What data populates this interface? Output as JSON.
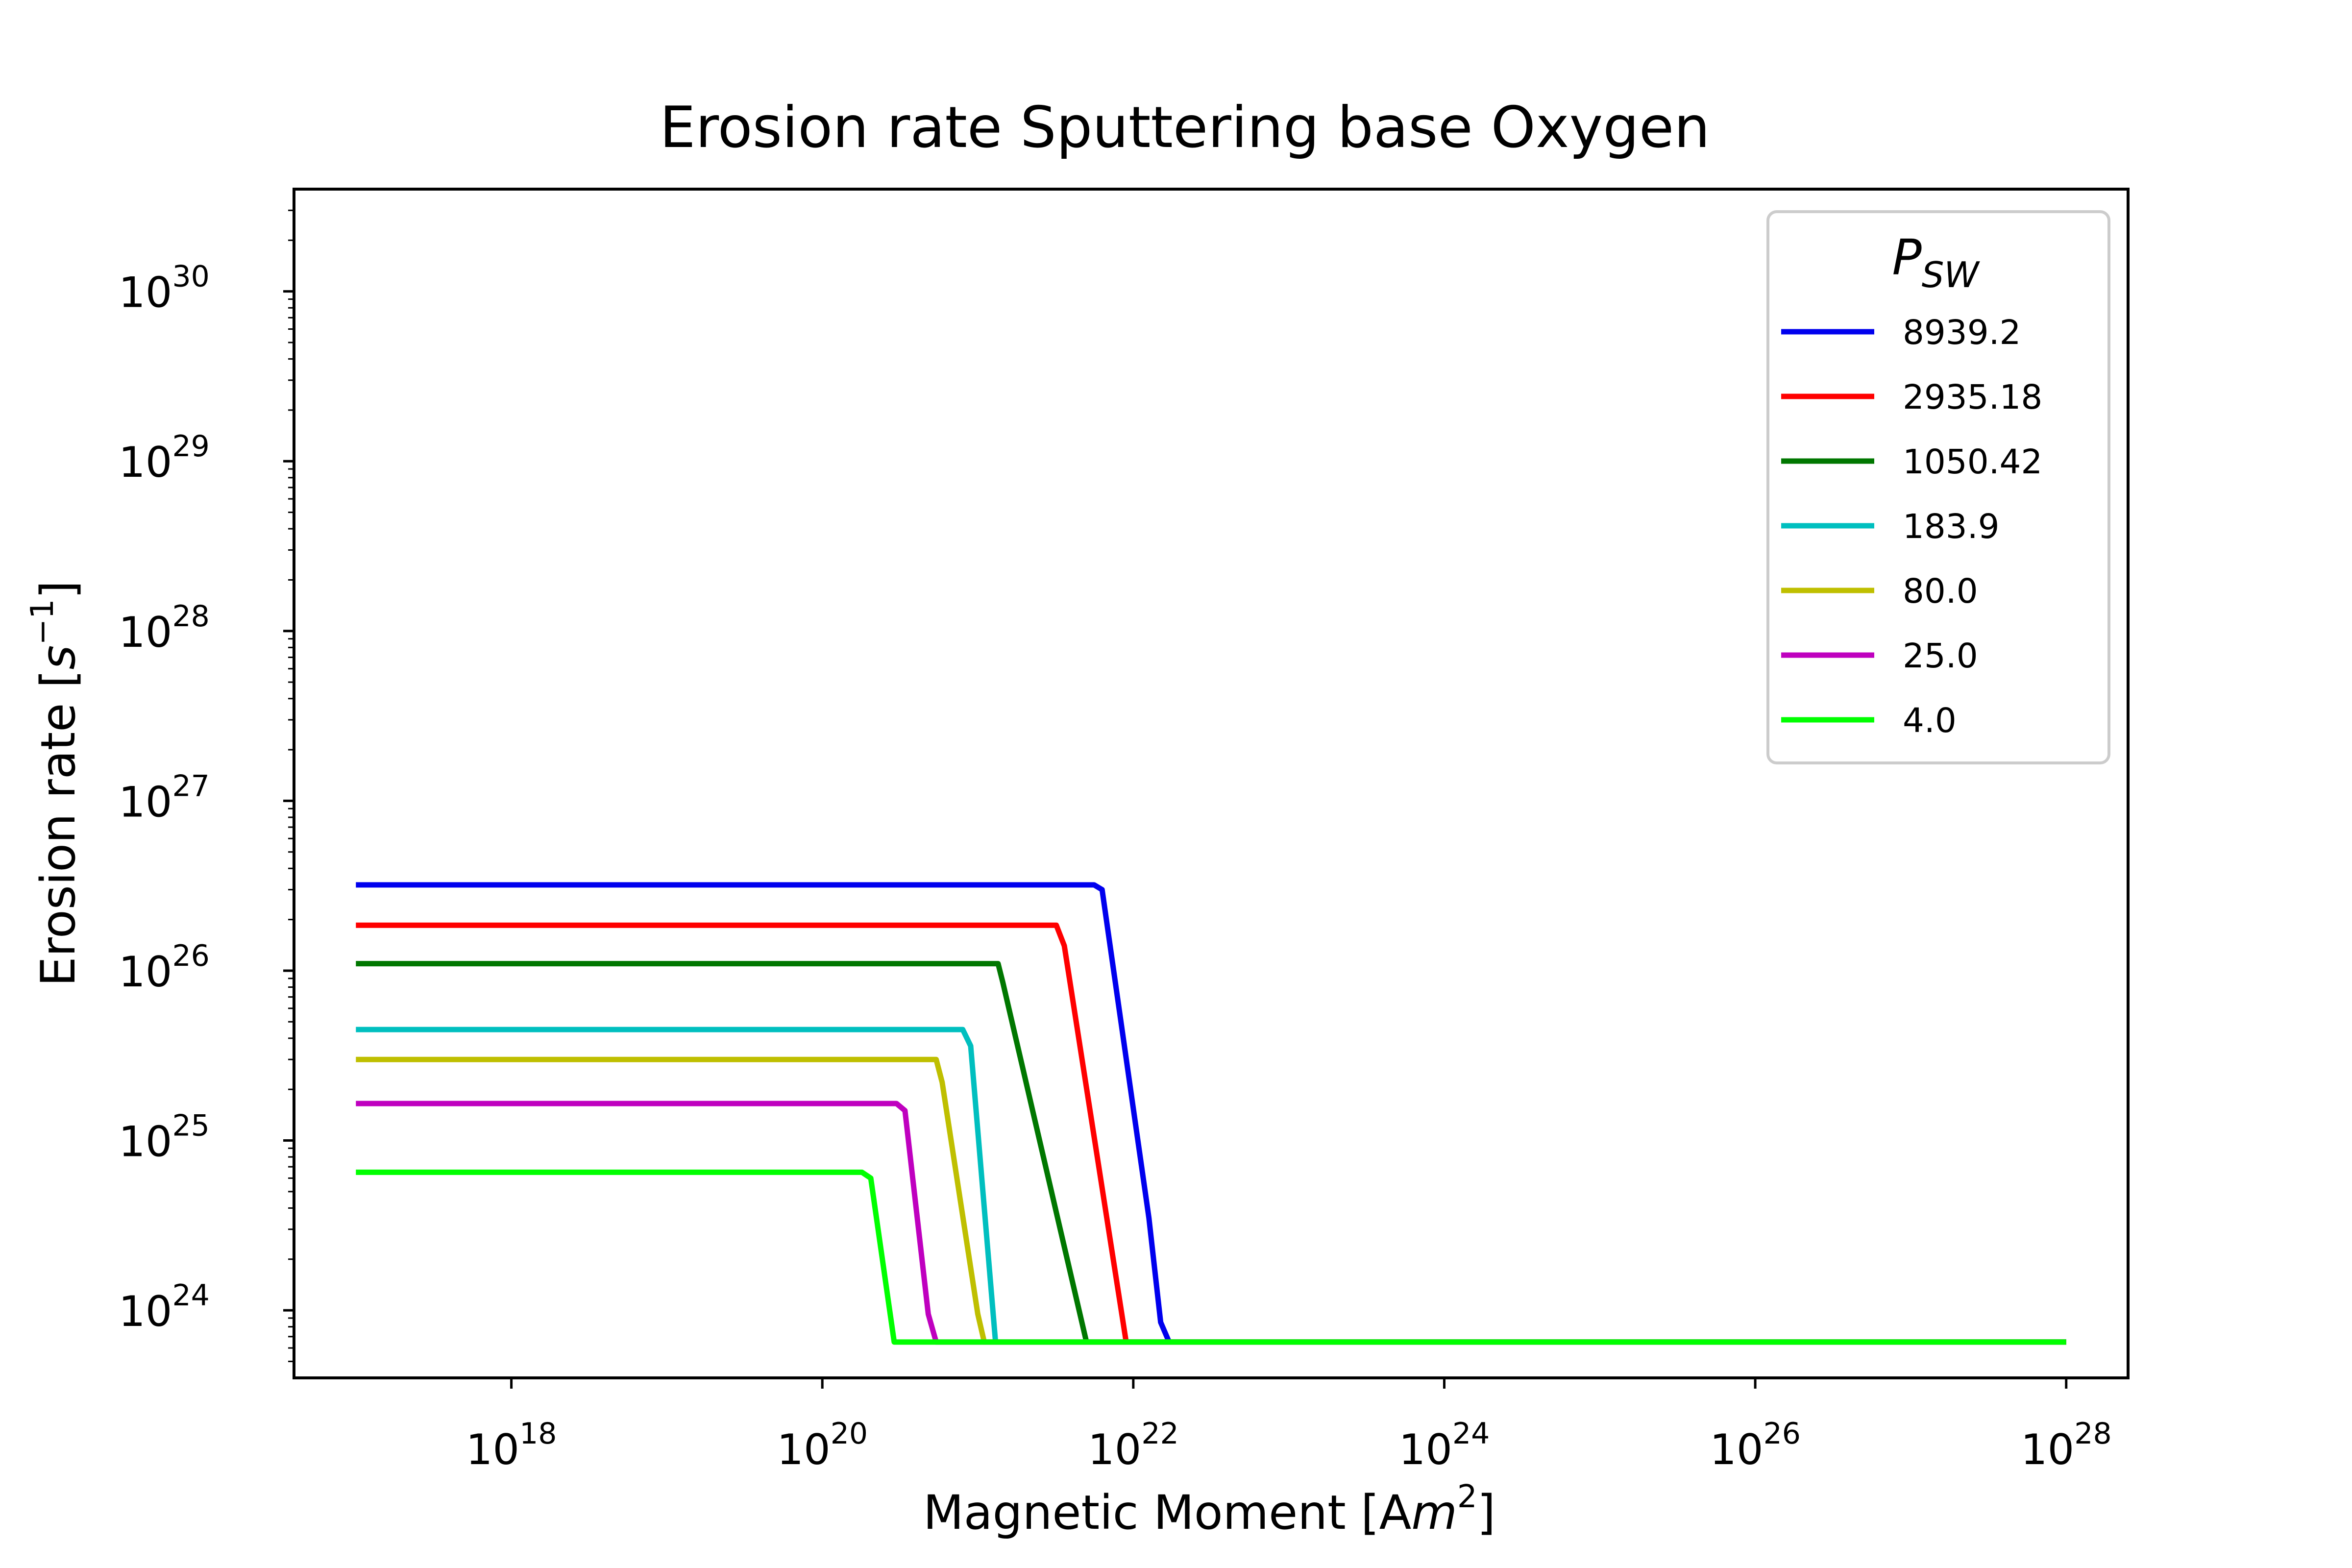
{
  "chart_data": {
    "type": "line",
    "title": "Erosion rate Sputtering base Oxygen",
    "xlabel": "Magnetic Moment [Am²]",
    "xlabel_parts": {
      "text": "Magnetic Moment [A",
      "italic": "m",
      "sup": "2",
      "end": "]"
    },
    "ylabel": "Erosion rate [s⁻¹]",
    "ylabel_parts": {
      "text": "Erosion rate [",
      "italic": "s",
      "sup": "−1",
      "end": "]"
    },
    "x_scale": "log",
    "y_scale": "log",
    "xlim": [
      4e+16,
      2.5e+28
    ],
    "ylim": [
      4e+23,
      4e+30
    ],
    "x_ticks": [
      {
        "base": "10",
        "exp": "18",
        "value": 1e+18
      },
      {
        "base": "10",
        "exp": "20",
        "value": 1e+20
      },
      {
        "base": "10",
        "exp": "22",
        "value": 1e+22
      },
      {
        "base": "10",
        "exp": "24",
        "value": 1e+24
      },
      {
        "base": "10",
        "exp": "26",
        "value": 1e+26
      },
      {
        "base": "10",
        "exp": "28",
        "value": 1e+28
      }
    ],
    "y_ticks": [
      {
        "base": "10",
        "exp": "24",
        "value": 1e+24
      },
      {
        "base": "10",
        "exp": "25",
        "value": 1e+25
      },
      {
        "base": "10",
        "exp": "26",
        "value": 1e+26
      },
      {
        "base": "10",
        "exp": "27",
        "value": 1e+27
      },
      {
        "base": "10",
        "exp": "28",
        "value": 1e+28
      },
      {
        "base": "10",
        "exp": "29",
        "value": 1e+29
      },
      {
        "base": "10",
        "exp": "30",
        "value": 1e+30
      }
    ],
    "legend": {
      "title": "P",
      "title_sub": "SW",
      "position": "top-right"
    },
    "grid": false,
    "series": [
      {
        "name": "8939.2",
        "color": "#0000ee",
        "points": [
          [
            1e+17,
            3.2e+26
          ],
          [
            5.6e+21,
            3.2e+26
          ],
          [
            6.3e+21,
            3e+26
          ],
          [
            1.26e+22,
            3.5e+24
          ],
          [
            1.5e+22,
            8.5e+23
          ],
          [
            1.7e+22,
            6.5e+23
          ],
          [
            1e+28,
            6.5e+23
          ]
        ]
      },
      {
        "name": "2935.18",
        "color": "#ff0000",
        "points": [
          [
            1e+17,
            1.85e+26
          ],
          [
            3.2e+21,
            1.85e+26
          ],
          [
            3.6e+21,
            1.4e+26
          ],
          [
            9e+21,
            6.5e+23
          ],
          [
            1e+28,
            6.5e+23
          ]
        ]
      },
      {
        "name": "1050.42",
        "color": "#007700",
        "points": [
          [
            1e+17,
            1.1e+26
          ],
          [
            1.35e+21,
            1.1e+26
          ],
          [
            1.45e+21,
            8.5e+25
          ],
          [
            5e+21,
            6.5e+23
          ],
          [
            1e+28,
            6.5e+23
          ]
        ]
      },
      {
        "name": "183.9",
        "color": "#00bfbf",
        "points": [
          [
            1e+17,
            4.5e+25
          ],
          [
            8e+20,
            4.5e+25
          ],
          [
            9e+20,
            3.6e+25
          ],
          [
            1.3e+21,
            6.5e+23
          ],
          [
            1e+28,
            6.5e+23
          ]
        ]
      },
      {
        "name": "80.0",
        "color": "#bfbf00",
        "points": [
          [
            1e+17,
            3e+25
          ],
          [
            5.4e+20,
            3e+25
          ],
          [
            5.9e+20,
            2.2e+25
          ],
          [
            1e+21,
            9.5e+23
          ],
          [
            1.1e+21,
            6.5e+23
          ],
          [
            1e+28,
            6.5e+23
          ]
        ]
      },
      {
        "name": "25.0",
        "color": "#bf00bf",
        "points": [
          [
            1e+17,
            1.65e+25
          ],
          [
            3e+20,
            1.65e+25
          ],
          [
            3.4e+20,
            1.5e+25
          ],
          [
            4.8e+20,
            9.5e+23
          ],
          [
            5.4e+20,
            6.5e+23
          ],
          [
            1e+28,
            6.5e+23
          ]
        ]
      },
      {
        "name": "4.0",
        "color": "#00ff00",
        "points": [
          [
            1e+17,
            6.5e+24
          ],
          [
            1.8e+20,
            6.5e+24
          ],
          [
            2.05e+20,
            6e+24
          ],
          [
            2.9e+20,
            6.5e+23
          ],
          [
            1e+28,
            6.5e+23
          ]
        ]
      }
    ]
  }
}
